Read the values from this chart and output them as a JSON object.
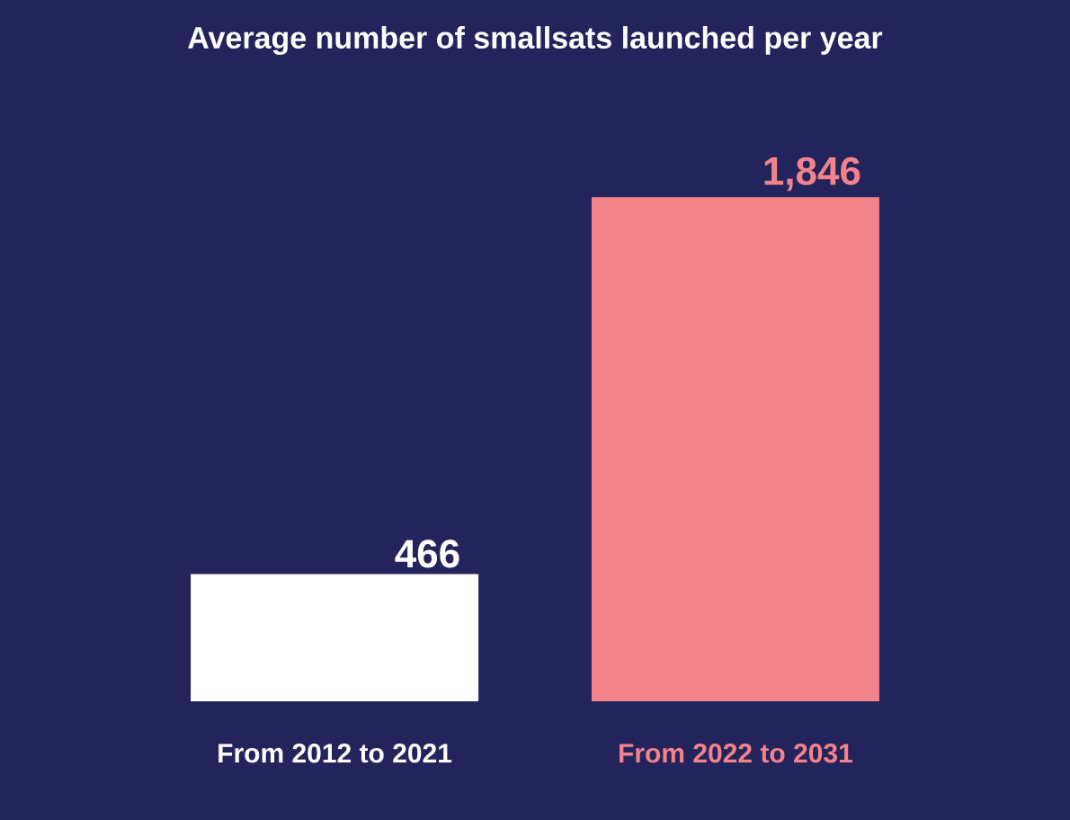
{
  "chart_data": {
    "type": "bar",
    "title": "Average number of smallsats launched per year",
    "categories": [
      "From 2012 to 2021",
      "From 2022 to 2031"
    ],
    "values": [
      466,
      1846
    ],
    "value_labels": [
      "466",
      "1,846"
    ],
    "colors": [
      "#ffffff",
      "#f2838a"
    ]
  }
}
